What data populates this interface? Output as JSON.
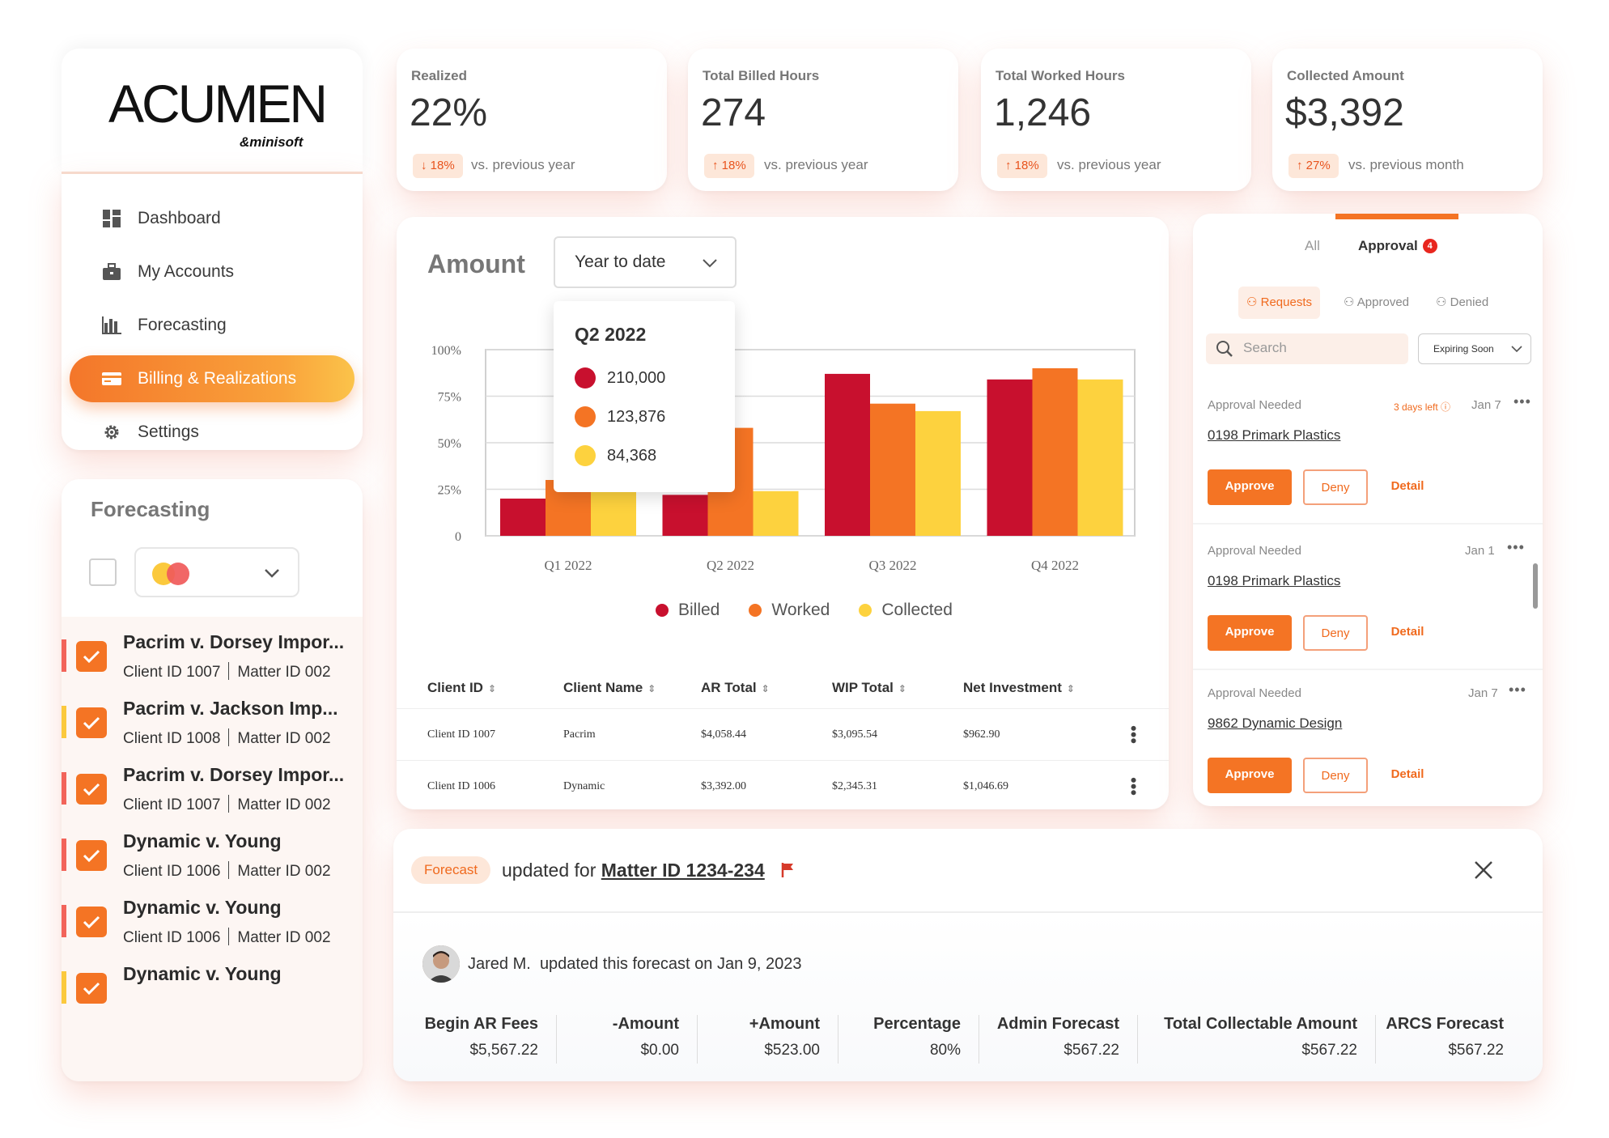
{
  "brand": {
    "name": "ACUMEN",
    "sub": "&minisoft"
  },
  "nav": {
    "items": [
      {
        "label": "Dashboard",
        "icon": "dashboard-icon"
      },
      {
        "label": "My Accounts",
        "icon": "briefcase-icon"
      },
      {
        "label": "Forecasting",
        "icon": "bar-chart-icon"
      },
      {
        "label": "Billing & Realizations",
        "icon": "credit-card-icon"
      },
      {
        "label": "Settings",
        "icon": "gear-icon"
      }
    ],
    "active_index": 3
  },
  "forecasting": {
    "title": "Forecasting",
    "items": [
      {
        "name": "Pacrim v. Dorsey Impor...",
        "client": "Client ID 1007",
        "matter": "Matter ID 002",
        "accent": "#f2645a"
      },
      {
        "name": "Pacrim v. Jackson Imp...",
        "client": "Client ID 1008",
        "matter": "Matter ID 002",
        "accent": "#fbc93d"
      },
      {
        "name": "Pacrim v. Dorsey Impor...",
        "client": "Client ID 1007",
        "matter": "Matter ID 002",
        "accent": "#f2645a"
      },
      {
        "name": "Dynamic v. Young",
        "client": "Client ID 1006",
        "matter": "Matter ID 002",
        "accent": "#f2645a"
      },
      {
        "name": "Dynamic v. Young",
        "client": "Client ID 1006",
        "matter": "Matter ID 002",
        "accent": "#f2645a"
      },
      {
        "name": "Dynamic v. Young",
        "client": "",
        "matter": "",
        "accent": "#fbc93d"
      }
    ]
  },
  "kpis": [
    {
      "label": "Realized",
      "value": "22%",
      "badge": "↓ 18%",
      "compare": "vs. previous year"
    },
    {
      "label": "Total Billed Hours",
      "value": "274",
      "badge": "↑ 18%",
      "compare": "vs. previous year"
    },
    {
      "label": "Total Worked Hours",
      "value": "1,246",
      "badge": "↑ 18%",
      "compare": "vs. previous year"
    },
    {
      "label": "Collected Amount",
      "value": "$3,392",
      "badge": "↑ 27%",
      "compare": "vs. previous month"
    }
  ],
  "amount": {
    "title": "Amount",
    "period": "Year to date",
    "tooltip": {
      "title": "Q2 2022",
      "rows": [
        {
          "value": "210,000",
          "color": "#c8102e"
        },
        {
          "value": "123,876",
          "color": "#f47424"
        },
        {
          "value": "84,368",
          "color": "#fdd23e"
        }
      ]
    },
    "table": {
      "headers": [
        "Client ID",
        "Client Name",
        "AR Total",
        "WIP Total",
        "Net Investment"
      ],
      "rows": [
        [
          "Client ID 1007",
          "Pacrim",
          "$4,058.44",
          "$3,095.54",
          "$962.90"
        ],
        [
          "Client ID 1006",
          "Dynamic",
          "$3,392.00",
          "$2,345.31",
          "$1,046.69"
        ]
      ]
    }
  },
  "chart_data": {
    "type": "bar",
    "categories": [
      "Q1 2022",
      "Q2 2022",
      "Q3 2022",
      "Q4 2022"
    ],
    "series": [
      {
        "name": "Billed",
        "color": "#c8102e",
        "values": [
          20,
          22,
          87,
          84
        ]
      },
      {
        "name": "Worked",
        "color": "#f47424",
        "values": [
          30,
          58,
          71,
          90
        ]
      },
      {
        "name": "Collected",
        "color": "#fdd23e",
        "values": [
          25,
          24,
          67,
          84
        ]
      }
    ],
    "ylim": [
      0,
      100
    ],
    "yticks": [
      "0",
      "25%",
      "50%",
      "75%",
      "100%"
    ],
    "grid": true,
    "legend": "bottom"
  },
  "approval": {
    "tabs": {
      "all": "All",
      "approval": "Approval",
      "count": "4"
    },
    "subtabs": [
      "Requests",
      "Approved",
      "Denied"
    ],
    "search_placeholder": "Search",
    "filter": "Expiring Soon",
    "items": [
      {
        "status": "Approval Needed",
        "days_left": "3 days left",
        "date": "Jan 7",
        "name": "0198 Primark Plastics"
      },
      {
        "status": "Approval Needed",
        "days_left": "",
        "date": "Jan 1",
        "name": "0198 Primark Plastics"
      },
      {
        "status": "Approval Needed",
        "days_left": "",
        "date": "Jan 7",
        "name": "9862 Dynamic Design"
      }
    ],
    "approve_label": "Approve",
    "deny_label": "Deny",
    "detail_label": "Detail"
  },
  "notification": {
    "pill": "Forecast",
    "text": "updated for",
    "matter": "Matter ID 1234-234",
    "user": "Jared M.",
    "message": "updated this forecast on Jan  9, 2023",
    "columns": [
      {
        "label": "Begin AR Fees",
        "value": "$5,567.22"
      },
      {
        "label": "-Amount",
        "value": "$0.00"
      },
      {
        "label": "+Amount",
        "value": "$523.00"
      },
      {
        "label": "Percentage",
        "value": "80%"
      },
      {
        "label": "Admin Forecast",
        "value": "$567.22"
      },
      {
        "label": "Total Collectable Amount",
        "value": "$567.22"
      },
      {
        "label": "ARCS Forecast",
        "value": "$567.22"
      }
    ]
  }
}
